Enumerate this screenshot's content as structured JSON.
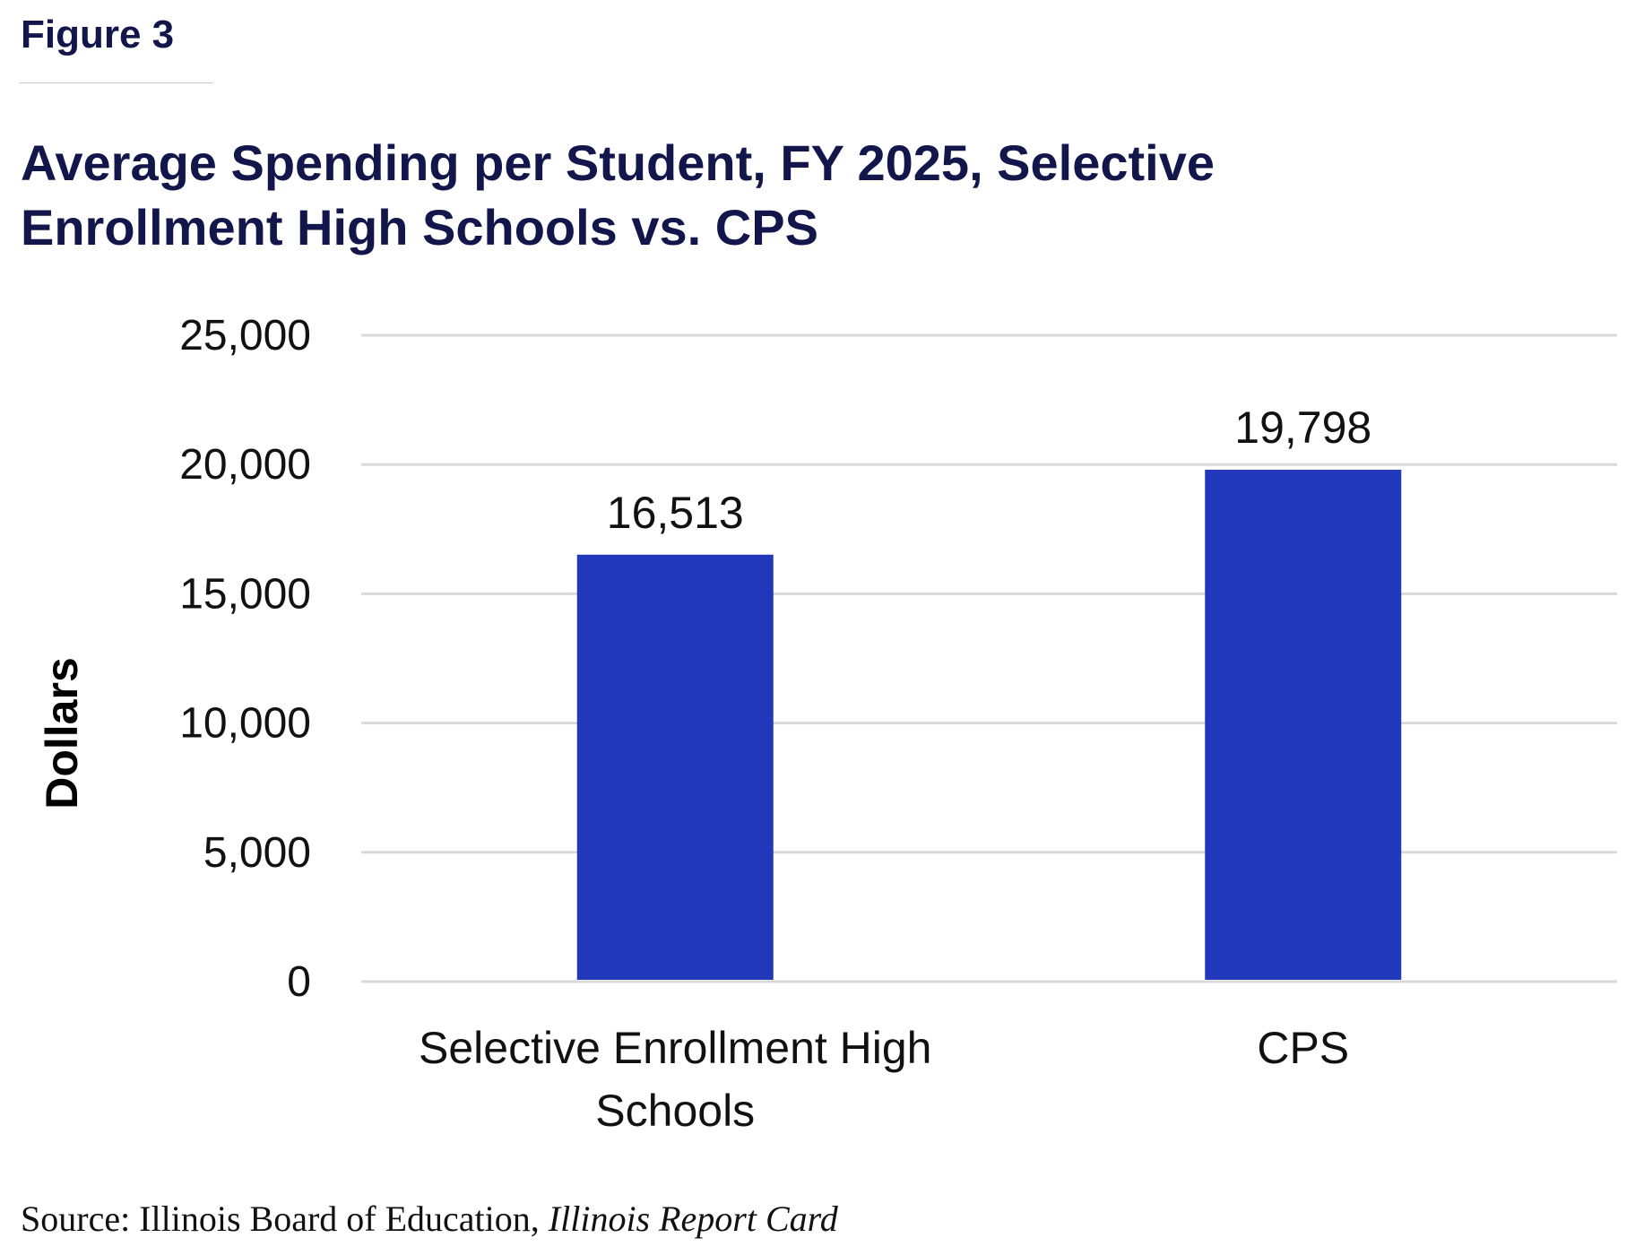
{
  "figure_label": "Figure 3",
  "title": "Average Spending per Student, FY 2025, Selective Enrollment High Schools vs. CPS",
  "source": {
    "prefix": "Source: Illinois Board of Education, ",
    "publication": "Illinois Report Card"
  },
  "chart_data": {
    "type": "bar",
    "title": "Average Spending per Student, FY 2025, Selective Enrollment High Schools vs. CPS",
    "xlabel": "",
    "ylabel": "Dollars",
    "ylim": [
      0,
      25000
    ],
    "yticks": [
      0,
      5000,
      10000,
      15000,
      20000,
      25000
    ],
    "ytick_labels": [
      "0",
      "5,000",
      "10,000",
      "15,000",
      "20,000",
      "25,000"
    ],
    "grid": true,
    "categories": [
      [
        "Selective Enrollment High",
        "Schools"
      ],
      [
        "CPS"
      ]
    ],
    "values": [
      16513,
      19798
    ],
    "data_labels": [
      "16,513",
      "19,798"
    ],
    "bar_color": "#2238bb",
    "grid_color": "#d9d9d9"
  }
}
